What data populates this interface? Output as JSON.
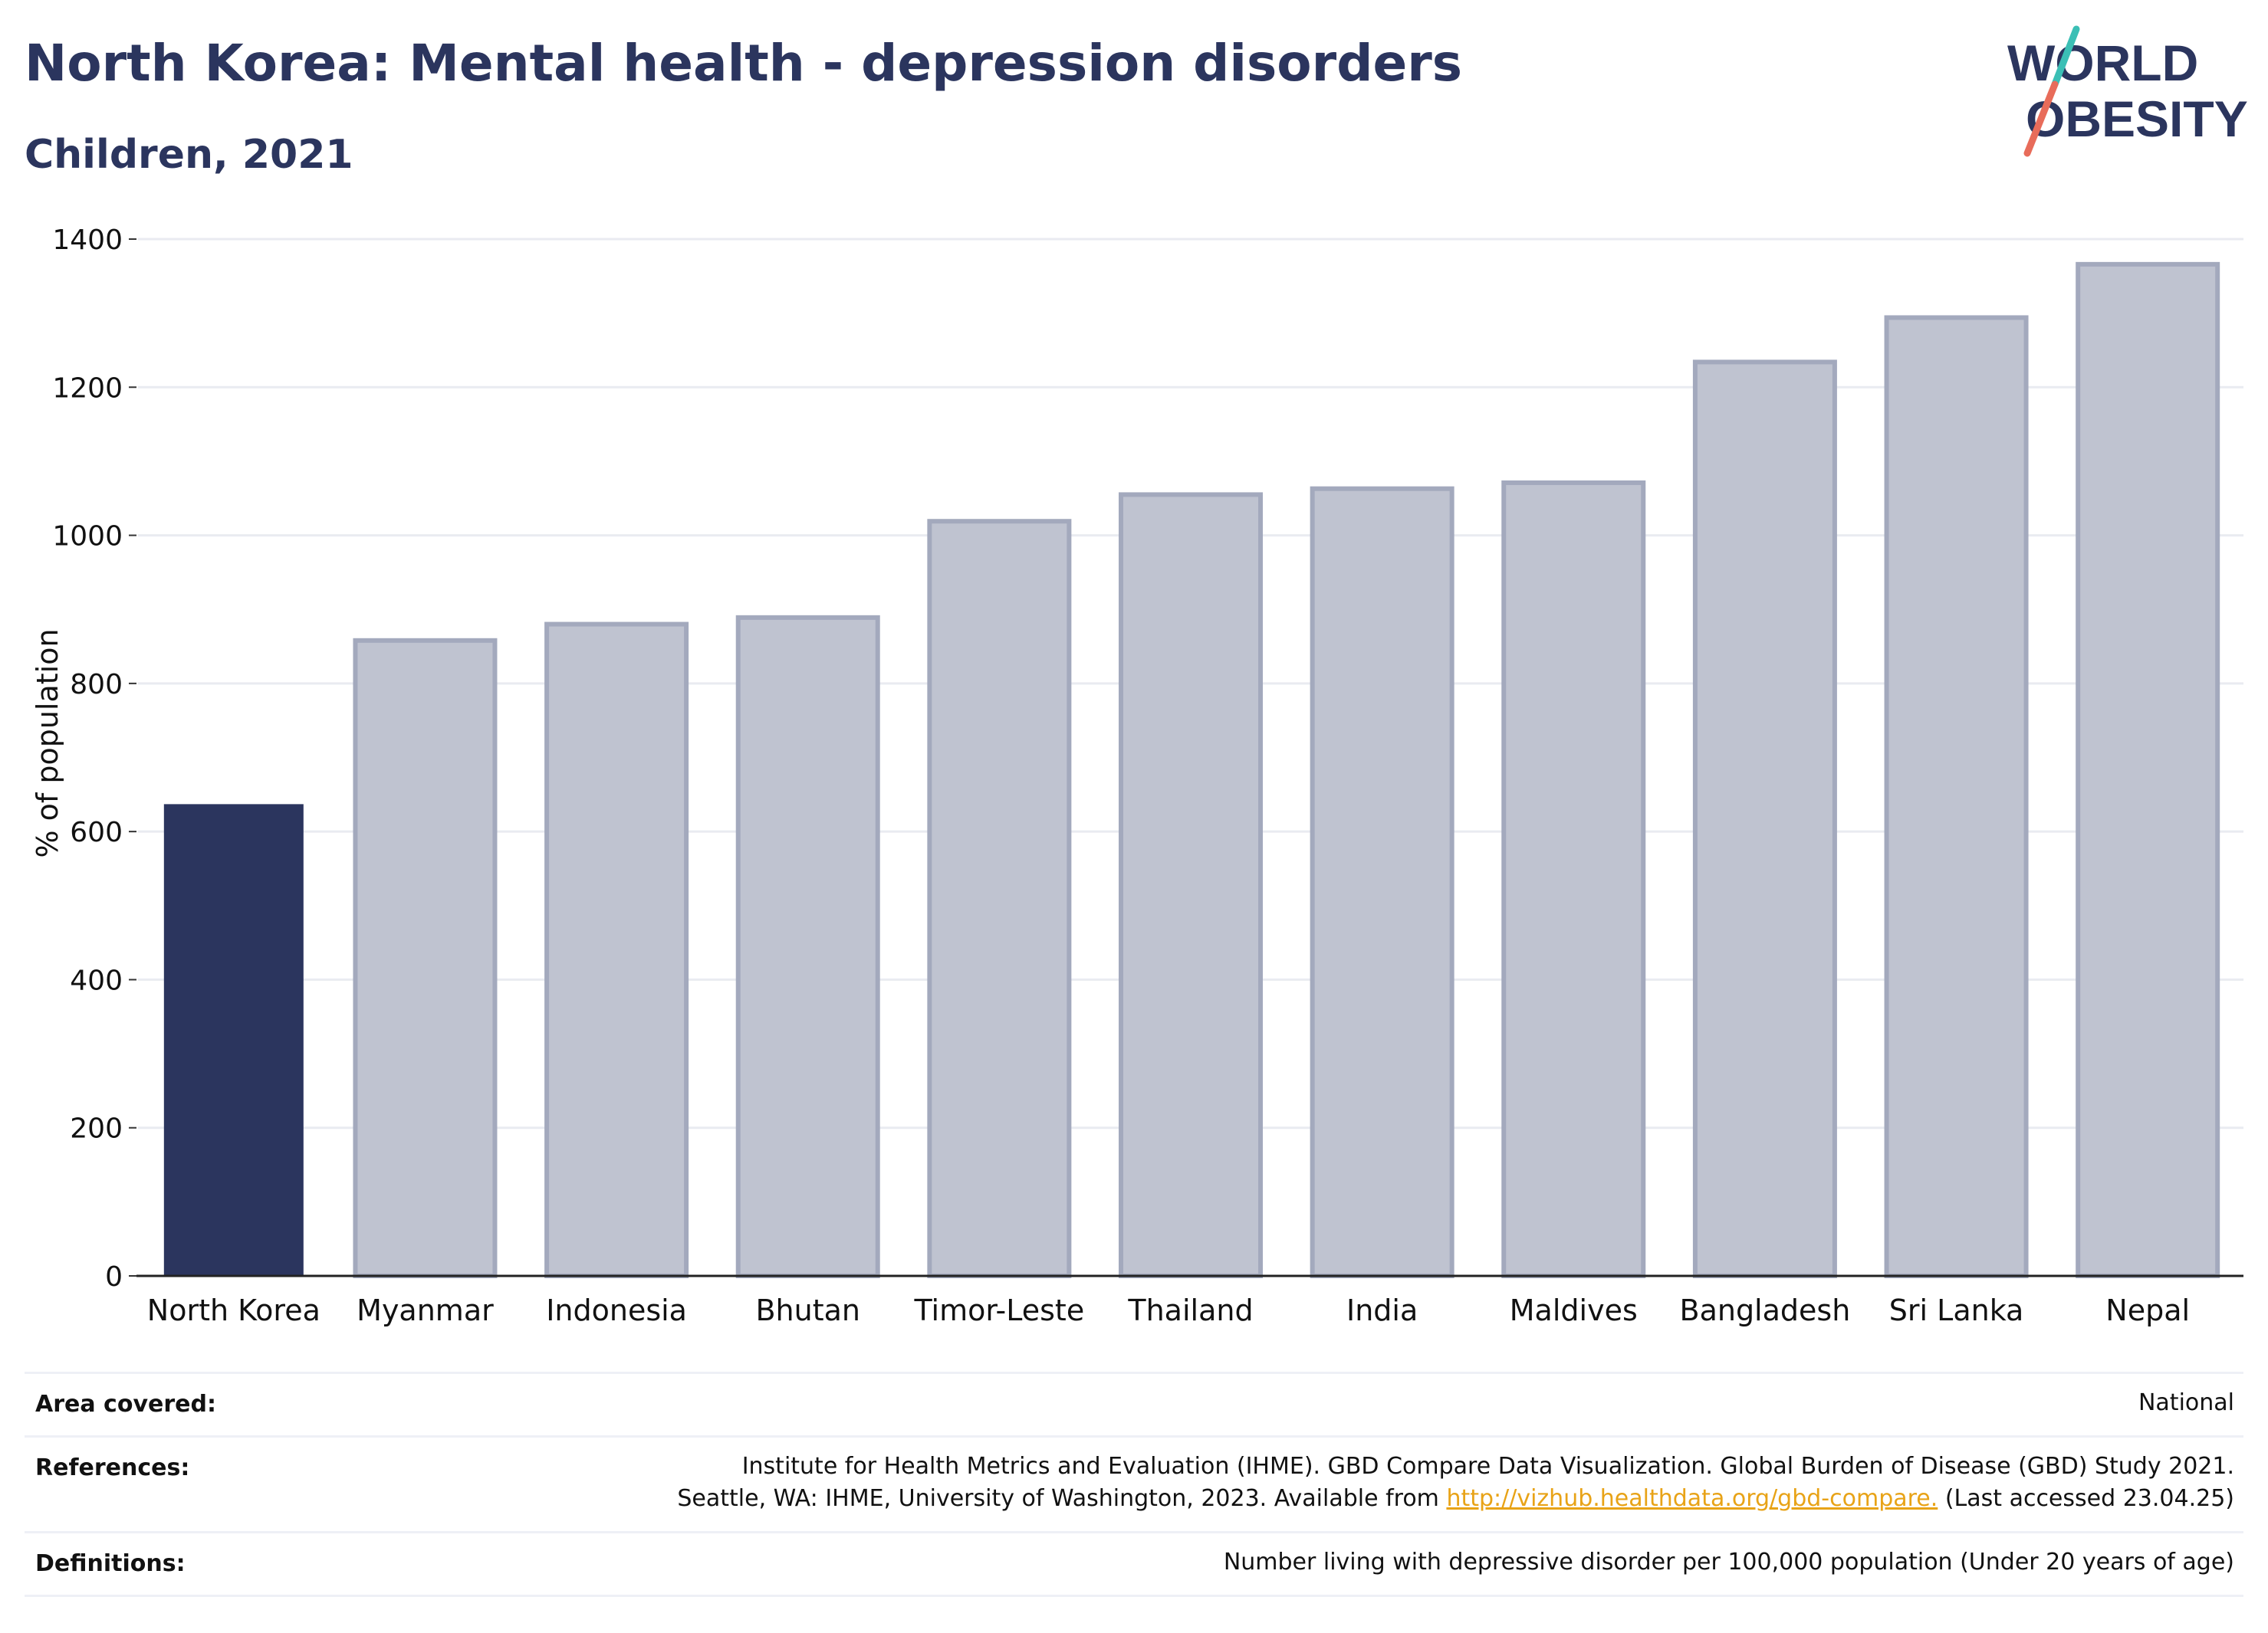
{
  "header": {
    "title": "North Korea: Mental health - depression disorders",
    "subtitle": "Children, 2021"
  },
  "logo": {
    "line1": "WORLD",
    "line2": "OBESITY"
  },
  "chart_data": {
    "type": "bar",
    "categories": [
      "North Korea",
      "Myanmar",
      "Indonesia",
      "Bhutan",
      "Timor-Leste",
      "Thailand",
      "India",
      "Maldives",
      "Bangladesh",
      "Sri Lanka",
      "Nepal"
    ],
    "values": [
      637,
      858,
      880,
      889,
      1019,
      1055,
      1063,
      1071,
      1234,
      1294,
      1366
    ],
    "highlight": "North Korea",
    "ylabel": "% of population",
    "ylim": [
      0,
      1400
    ],
    "yticks": [
      0,
      200,
      400,
      600,
      800,
      1000,
      1200,
      1400
    ],
    "grid": true,
    "colors": {
      "highlight": "#2b355e",
      "other_fill": "#bfc3d0",
      "other_stroke": "#a3a9bd"
    }
  },
  "footer": {
    "area_label": "Area covered:",
    "area_value": "National",
    "references_label": "References:",
    "references_line1": "Institute for Health Metrics and Evaluation (IHME). GBD Compare Data Visualization. Global Burden of Disease (GBD) Study 2021.",
    "references_line2_pre": "Seattle, WA: IHME, University of Washington, 2023. Available from ",
    "references_link": "http://vizhub.healthdata.org/gbd-compare.",
    "references_line2_post": " (Last accessed 23.04.25)",
    "definitions_label": "Definitions:",
    "definitions_value": "Number living with depressive disorder per 100,000 population (Under 20 years of age)"
  }
}
